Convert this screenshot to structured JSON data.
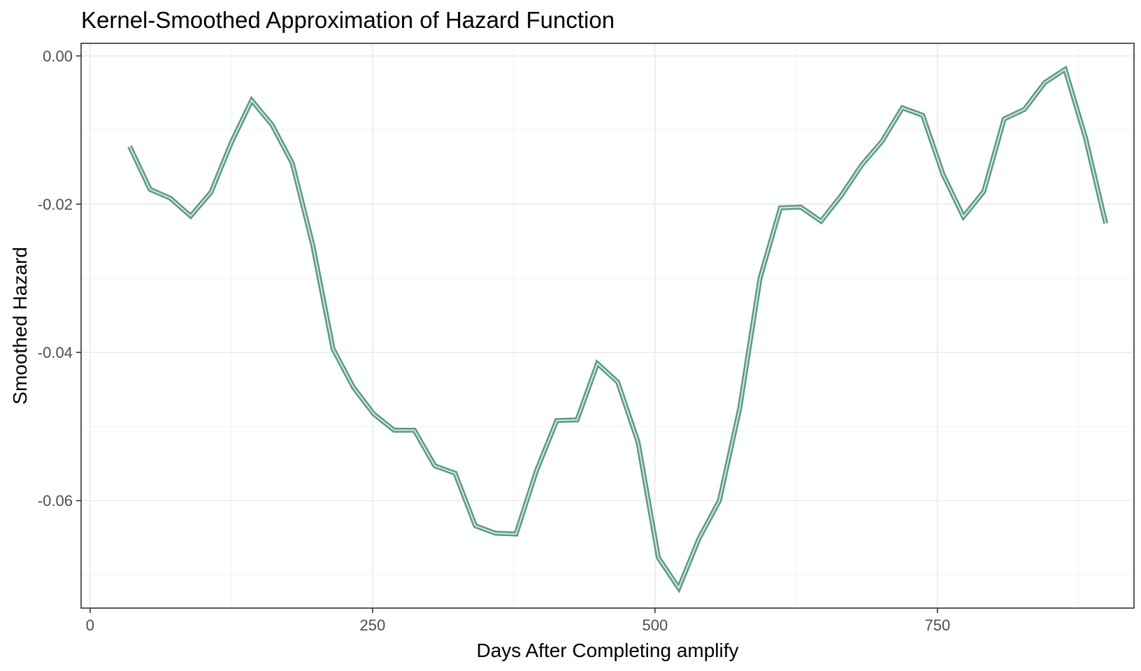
{
  "chart_data": {
    "type": "line",
    "title": "Kernel-Smoothed Approximation of Hazard Function",
    "xlabel": "Days After Completing amplify",
    "ylabel": "Smoothed Hazard",
    "xlim": [
      -8,
      924
    ],
    "ylim": [
      -0.0745,
      0.0017
    ],
    "x_ticks": [
      0,
      250,
      500,
      750
    ],
    "x_tick_labels": [
      "0",
      "250",
      "500",
      "750"
    ],
    "y_ticks": [
      0.0,
      -0.02,
      -0.04,
      -0.06
    ],
    "y_tick_labels": [
      "0.00",
      "-0.02",
      "-0.04",
      "-0.06"
    ],
    "grid": true,
    "legend": "none",
    "colors": {
      "line_outer": "#5b9a84",
      "line_inner": "#d6e8df"
    },
    "series": [
      {
        "x": [
          35,
          53,
          71,
          89,
          107,
          125,
          143,
          161,
          179,
          197,
          215,
          233,
          251,
          269,
          287,
          305,
          323,
          341,
          359,
          377,
          395,
          413,
          431,
          449,
          467,
          485,
          503,
          521,
          539,
          557,
          575,
          593,
          611,
          629,
          647,
          665,
          683,
          701,
          719,
          737,
          755,
          773,
          791,
          809,
          827,
          845,
          863,
          881,
          899
        ],
        "y": [
          -0.0122,
          -0.018,
          -0.0192,
          -0.0216,
          -0.0184,
          -0.0117,
          -0.006,
          -0.0093,
          -0.0145,
          -0.0255,
          -0.0395,
          -0.0447,
          -0.0483,
          -0.0505,
          -0.0505,
          -0.0553,
          -0.0563,
          -0.0634,
          -0.0644,
          -0.0645,
          -0.056,
          -0.0492,
          -0.0491,
          -0.0415,
          -0.044,
          -0.0521,
          -0.0677,
          -0.0718,
          -0.0651,
          -0.06,
          -0.0475,
          -0.03,
          -0.0205,
          -0.0204,
          -0.0223,
          -0.0188,
          -0.0147,
          -0.0115,
          -0.007,
          -0.008,
          -0.016,
          -0.0217,
          -0.0183,
          -0.0085,
          -0.0072,
          -0.0036,
          -0.0018,
          -0.011,
          -0.0226
        ]
      }
    ]
  }
}
